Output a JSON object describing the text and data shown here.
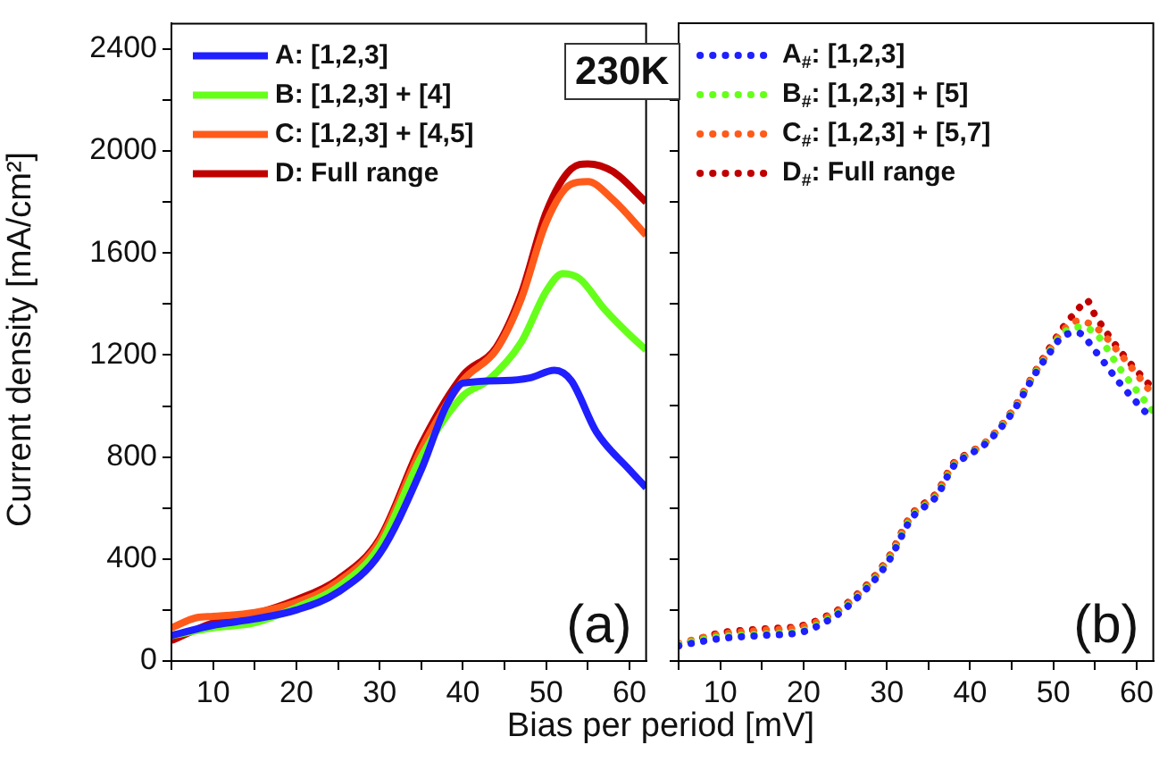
{
  "chart_data": [
    {
      "type": "line",
      "ylabel": "Current density [mA/cm²]",
      "xlabel": "Bias per period [mV]",
      "annotations": [
        "(a)",
        "230K"
      ],
      "legend": "top left",
      "line_style": "solid",
      "xlim": [
        5,
        62
      ],
      "xticks": [
        {
          "value": 5,
          "label": null
        },
        10,
        {
          "value": 15,
          "label": null
        },
        20,
        {
          "value": 25,
          "label": null
        },
        30,
        {
          "value": 35,
          "label": null
        },
        40,
        {
          "value": 45,
          "label": null
        },
        50,
        {
          "value": 55,
          "label": null
        },
        60
      ],
      "ylim": [
        0,
        2500
      ],
      "yticks": [
        0,
        {
          "value": 200,
          "label": null
        },
        400,
        {
          "value": 600,
          "label": null
        },
        800,
        {
          "value": 1000,
          "label": null
        },
        1200,
        {
          "value": 1400,
          "label": null
        },
        1600,
        {
          "value": 1800,
          "label": null
        },
        2000,
        {
          "value": 2200,
          "label": null
        },
        2400
      ],
      "series": [
        {
          "name": "A: [1,2,3]",
          "color": "#1f1fff",
          "x": [
            5,
            10,
            15,
            20,
            25,
            30,
            35,
            38,
            40,
            45,
            48,
            51,
            53,
            56,
            60,
            62
          ],
          "values": [
            100,
            140,
            165,
            200,
            270,
            420,
            750,
            1000,
            1090,
            1100,
            1110,
            1140,
            1100,
            900,
            750,
            680
          ]
        },
        {
          "name": "B: [1,2,3] + [4]",
          "color": "#66ff1a",
          "x": [
            5,
            10,
            15,
            20,
            25,
            30,
            35,
            40,
            43,
            47,
            50,
            52,
            54,
            57,
            60,
            62
          ],
          "values": [
            100,
            130,
            150,
            210,
            290,
            450,
            800,
            1040,
            1100,
            1250,
            1450,
            1520,
            1500,
            1380,
            1280,
            1220
          ]
        },
        {
          "name": "C: [1,2,3] + [4,5]",
          "color": "#ff5a1a",
          "x": [
            5,
            8,
            10,
            15,
            20,
            25,
            30,
            35,
            40,
            44,
            47,
            50,
            53,
            55,
            58,
            62
          ],
          "values": [
            130,
            170,
            175,
            190,
            230,
            310,
            470,
            830,
            1100,
            1220,
            1420,
            1720,
            1870,
            1880,
            1810,
            1670
          ]
        },
        {
          "name": "D: Full range",
          "color": "#c00000",
          "x": [
            5,
            10,
            15,
            20,
            25,
            30,
            35,
            40,
            44,
            47,
            50,
            53,
            55,
            58,
            62
          ],
          "values": [
            80,
            150,
            185,
            240,
            320,
            480,
            850,
            1120,
            1230,
            1440,
            1760,
            1930,
            1950,
            1920,
            1800
          ]
        }
      ]
    },
    {
      "type": "line",
      "annotations": [
        "(b)"
      ],
      "legend": "top left",
      "line_style": "dotted",
      "tick_labels": "x",
      "xlim": [
        5,
        62
      ],
      "xticks": [
        {
          "value": 5,
          "label": null
        },
        10,
        {
          "value": 15,
          "label": null
        },
        20,
        {
          "value": 25,
          "label": null
        },
        30,
        {
          "value": 35,
          "label": null
        },
        40,
        {
          "value": 45,
          "label": null
        },
        50,
        {
          "value": 55,
          "label": null
        },
        60
      ],
      "ylim": [
        0,
        2500
      ],
      "yticks": [
        0,
        {
          "value": 200,
          "label": null
        },
        {
          "value": 400,
          "label": null
        },
        {
          "value": 600,
          "label": null
        },
        {
          "value": 800,
          "label": null
        },
        {
          "value": 1000,
          "label": null
        },
        {
          "value": 1200,
          "label": null
        },
        {
          "value": 1400,
          "label": null
        },
        {
          "value": 1600,
          "label": null
        },
        {
          "value": 1800,
          "label": null
        },
        {
          "value": 2000,
          "label": null
        },
        {
          "value": 2200,
          "label": null
        },
        {
          "value": 2400,
          "label": null
        }
      ],
      "series": [
        {
          "name": "A$_{#}$: [1,2,3]",
          "color": "#1f1fff",
          "x": [
            5,
            10,
            15,
            20,
            23,
            25,
            30,
            33,
            36,
            38,
            40,
            42,
            45,
            48,
            50,
            51,
            53,
            55,
            58,
            62
          ],
          "values": [
            60,
            88,
            100,
            115,
            160,
            205,
            380,
            560,
            647,
            763,
            810,
            856,
            970,
            1135,
            1228,
            1270,
            1286,
            1216,
            1088,
            942
          ]
        },
        {
          "name": "B$_{#}$: [1,2,3] + [5]",
          "color": "#66ff1a",
          "x": [
            5,
            10,
            15,
            20,
            23,
            25,
            30,
            33,
            36,
            38,
            40,
            42,
            45,
            48,
            50,
            51,
            53,
            55,
            58,
            62
          ],
          "values": [
            65,
            95,
            105,
            120,
            165,
            210,
            385,
            565,
            650,
            765,
            812,
            858,
            972,
            1138,
            1235,
            1280,
            1309,
            1286,
            1146,
            977
          ]
        },
        {
          "name": "C$_{#}$: [1,2,3] + [5,7]",
          "color": "#ff5a1a",
          "x": [
            5,
            10,
            15,
            20,
            23,
            25,
            30,
            33,
            36,
            38,
            40,
            42,
            45,
            48,
            50,
            51,
            53,
            55,
            58,
            62
          ],
          "values": [
            70,
            105,
            120,
            135,
            175,
            215,
            390,
            570,
            655,
            770,
            815,
            860,
            975,
            1140,
            1240,
            1290,
            1333,
            1310,
            1205,
            1042
          ]
        },
        {
          "name": "D$_{#}$: Full range",
          "color": "#c00000",
          "x": [
            5,
            10,
            15,
            20,
            23,
            25,
            30,
            33,
            36,
            38,
            40,
            42,
            45,
            48,
            50,
            51,
            53,
            54,
            55,
            58,
            62
          ],
          "values": [
            60,
            110,
            125,
            140,
            180,
            220,
            395,
            575,
            660,
            775,
            818,
            862,
            978,
            1145,
            1250,
            1300,
            1380,
            1414,
            1356,
            1216,
            1065
          ]
        }
      ]
    }
  ]
}
